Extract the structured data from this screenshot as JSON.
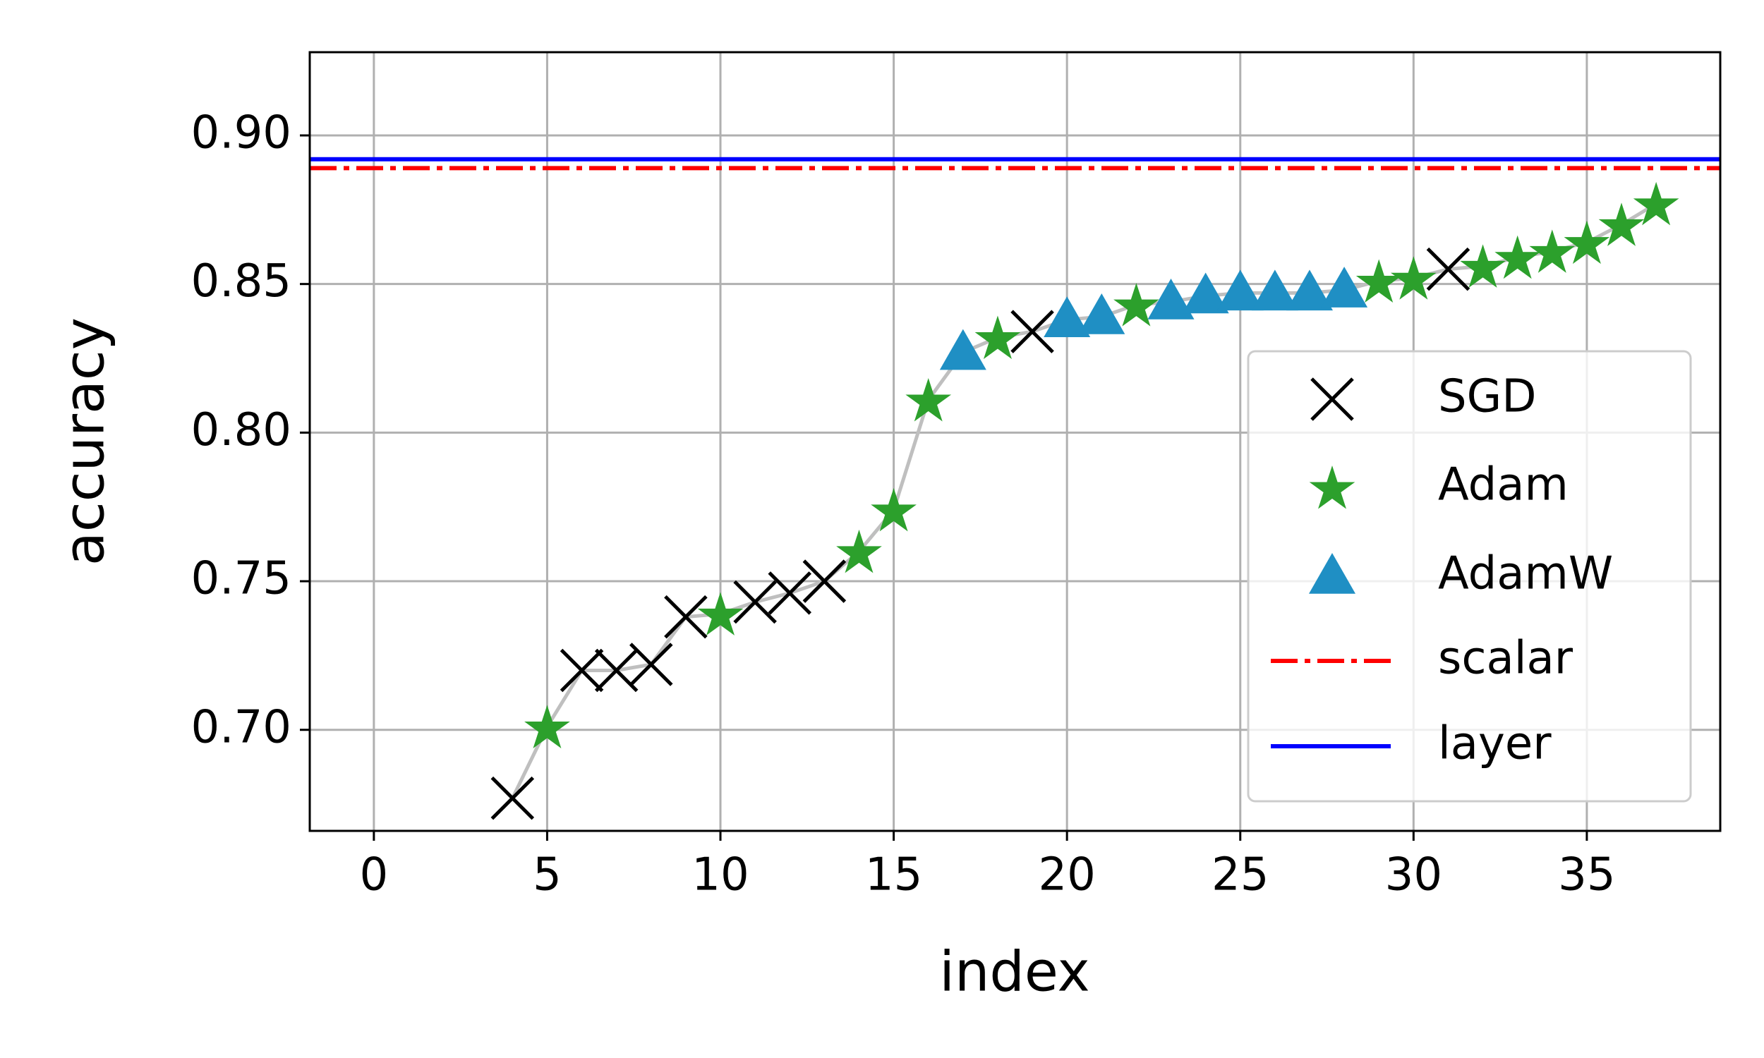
{
  "chart_data": {
    "type": "scatter",
    "xlabel": "index",
    "ylabel": "accuracy",
    "xlim": [
      -1.85,
      38.85
    ],
    "ylim": [
      0.666,
      0.928
    ],
    "xticks": [
      0,
      5,
      10,
      15,
      20,
      25,
      30,
      35
    ],
    "yticks": [
      {
        "value": 0.7,
        "label": "0.70"
      },
      0.75,
      {
        "value": 0.8,
        "label": "0.80"
      },
      0.85,
      {
        "value": 0.9,
        "label": "0.90"
      }
    ],
    "grid": true,
    "legend": "lower right",
    "x": [
      4,
      5,
      6,
      7,
      8,
      9,
      10,
      11,
      12,
      13,
      14,
      15,
      16,
      17,
      18,
      19,
      20,
      21,
      22,
      23,
      24,
      25,
      26,
      27,
      28,
      29,
      30,
      31,
      32,
      33,
      34,
      35,
      36,
      37
    ],
    "trend": {
      "color": "#bfbfbf",
      "values": [
        0.677,
        0.701,
        0.72,
        0.72,
        0.722,
        0.738,
        0.739,
        0.743,
        0.746,
        0.75,
        0.76,
        0.774,
        0.811,
        0.827,
        0.832,
        0.834,
        0.838,
        0.839,
        0.843,
        0.844,
        0.846,
        0.847,
        0.847,
        0.847,
        0.848,
        0.851,
        0.852,
        0.855,
        0.856,
        0.859,
        0.861,
        0.864,
        0.87,
        0.877
      ]
    },
    "series": [
      {
        "name": "SGD",
        "color": "#000000",
        "marker": "x",
        "values": [
          0.677,
          null,
          0.72,
          0.72,
          0.722,
          0.738,
          null,
          0.743,
          0.746,
          0.75,
          null,
          null,
          null,
          null,
          null,
          0.834,
          null,
          null,
          null,
          null,
          null,
          null,
          null,
          null,
          null,
          null,
          null,
          0.855,
          null,
          null,
          null,
          null,
          null,
          null
        ]
      },
      {
        "name": "Adam",
        "color": "#2ca02c",
        "marker": "star",
        "values": [
          null,
          0.701,
          null,
          null,
          null,
          null,
          0.739,
          null,
          null,
          null,
          0.76,
          0.774,
          0.811,
          null,
          0.832,
          null,
          null,
          null,
          0.843,
          null,
          null,
          null,
          null,
          null,
          null,
          0.851,
          0.852,
          null,
          0.856,
          0.859,
          0.861,
          0.864,
          0.87,
          0.877
        ]
      },
      {
        "name": "AdamW",
        "color": "#1f8fc4",
        "marker": "triangle",
        "values": [
          null,
          null,
          null,
          null,
          null,
          null,
          null,
          null,
          null,
          null,
          null,
          null,
          null,
          0.827,
          null,
          null,
          0.838,
          0.839,
          null,
          0.844,
          0.846,
          0.847,
          0.847,
          0.847,
          0.848,
          null,
          null,
          null,
          null,
          null,
          null,
          null,
          null,
          null
        ]
      }
    ],
    "hlines": [
      {
        "name": "scalar",
        "color": "#ff0000",
        "style": "dashdot",
        "value": 0.889
      },
      {
        "name": "layer",
        "color": "#0000ff",
        "style": "solid",
        "value": 0.892
      }
    ]
  }
}
